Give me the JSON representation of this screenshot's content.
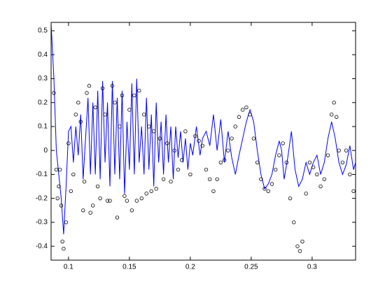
{
  "chart_data": {
    "type": "line",
    "xlim": [
      0.0857,
      0.3357
    ],
    "ylim": [
      -0.458,
      0.535
    ],
    "xticks": [
      0.1,
      0.15,
      0.2,
      0.25,
      0.3
    ],
    "yticks": [
      -0.4,
      -0.3,
      -0.2,
      -0.1,
      0,
      0.1,
      0.2,
      0.3,
      0.4,
      0.5
    ],
    "grid": false,
    "series": [
      {
        "type": "line",
        "color": "#0000ff",
        "x": [
          0.0857,
          0.088,
          0.09,
          0.092,
          0.094,
          0.096,
          0.098,
          0.1,
          0.102,
          0.104,
          0.106,
          0.108,
          0.11,
          0.112,
          0.114,
          0.116,
          0.118,
          0.12,
          0.122,
          0.124,
          0.126,
          0.128,
          0.13,
          0.132,
          0.134,
          0.136,
          0.138,
          0.14,
          0.142,
          0.144,
          0.146,
          0.148,
          0.15,
          0.152,
          0.154,
          0.156,
          0.158,
          0.16,
          0.162,
          0.164,
          0.166,
          0.168,
          0.17,
          0.172,
          0.174,
          0.176,
          0.178,
          0.18,
          0.182,
          0.184,
          0.186,
          0.188,
          0.19,
          0.192,
          0.194,
          0.196,
          0.198,
          0.2,
          0.202,
          0.205,
          0.208,
          0.21,
          0.213,
          0.216,
          0.219,
          0.222,
          0.225,
          0.228,
          0.231,
          0.234,
          0.237,
          0.24,
          0.243,
          0.246,
          0.249,
          0.252,
          0.255,
          0.258,
          0.261,
          0.264,
          0.267,
          0.27,
          0.273,
          0.275,
          0.277,
          0.28,
          0.283,
          0.286,
          0.289,
          0.292,
          0.295,
          0.298,
          0.301,
          0.304,
          0.307,
          0.31,
          0.313,
          0.316,
          0.319,
          0.322,
          0.325,
          0.328,
          0.331,
          0.334,
          0.3357
        ],
        "values": [
          0.53,
          0.3,
          0.0,
          -0.1,
          -0.2,
          -0.35,
          -0.15,
          0.08,
          0.1,
          -0.05,
          0.1,
          -0.02,
          0.15,
          -0.12,
          0.05,
          0.22,
          -0.1,
          0.2,
          -0.1,
          0.25,
          -0.12,
          0.29,
          -0.05,
          0.2,
          -0.15,
          0.29,
          -0.1,
          0.22,
          -0.12,
          0.25,
          -0.18,
          0.12,
          -0.08,
          0.28,
          -0.1,
          0.3,
          -0.05,
          0.1,
          -0.1,
          0.22,
          -0.08,
          0.15,
          -0.15,
          0.2,
          -0.05,
          0.12,
          -0.1,
          0.15,
          -0.05,
          0.1,
          -0.12,
          0.1,
          -0.03,
          0.08,
          -0.05,
          0.05,
          -0.08,
          0.03,
          -0.02,
          0.1,
          -0.02,
          0.05,
          0.08,
          0.02,
          0.15,
          0.0,
          0.13,
          -0.05,
          0.08,
          -0.03,
          -0.1,
          -0.02,
          0.05,
          0.12,
          0.17,
          0.12,
          0.0,
          -0.1,
          -0.16,
          -0.14,
          -0.1,
          -0.02,
          0.04,
          0.0,
          -0.12,
          -0.03,
          0.08,
          -0.08,
          -0.15,
          -0.12,
          -0.05,
          -0.1,
          -0.05,
          -0.02,
          -0.1,
          -0.05,
          0.05,
          0.12,
          0.05,
          -0.05,
          -0.1,
          -0.06,
          0.02,
          -0.08,
          -0.05
        ]
      },
      {
        "type": "scatter",
        "color": "#000000",
        "x": [
          0.088,
          0.09,
          0.091,
          0.092,
          0.093,
          0.094,
          0.095,
          0.096,
          0.098,
          0.1,
          0.102,
          0.104,
          0.106,
          0.108,
          0.11,
          0.112,
          0.113,
          0.115,
          0.117,
          0.118,
          0.12,
          0.122,
          0.124,
          0.126,
          0.128,
          0.13,
          0.132,
          0.134,
          0.136,
          0.138,
          0.14,
          0.142,
          0.144,
          0.146,
          0.148,
          0.15,
          0.152,
          0.154,
          0.156,
          0.158,
          0.16,
          0.162,
          0.164,
          0.166,
          0.168,
          0.17,
          0.172,
          0.175,
          0.178,
          0.181,
          0.184,
          0.187,
          0.19,
          0.193,
          0.196,
          0.2,
          0.204,
          0.207,
          0.21,
          0.213,
          0.216,
          0.219,
          0.222,
          0.225,
          0.228,
          0.231,
          0.234,
          0.237,
          0.24,
          0.243,
          0.246,
          0.249,
          0.252,
          0.255,
          0.258,
          0.261,
          0.264,
          0.267,
          0.27,
          0.273,
          0.276,
          0.279,
          0.282,
          0.285,
          0.288,
          0.29,
          0.292,
          0.295,
          0.298,
          0.301,
          0.304,
          0.307,
          0.31,
          0.313,
          0.316,
          0.318,
          0.32,
          0.322,
          0.325,
          0.328,
          0.331,
          0.334
        ],
        "values": [
          0.24,
          -0.08,
          -0.2,
          -0.15,
          -0.08,
          -0.23,
          -0.38,
          -0.41,
          -0.3,
          0.03,
          -0.17,
          -0.1,
          0.15,
          0.2,
          0.12,
          -0.25,
          -0.13,
          0.24,
          0.27,
          -0.26,
          -0.23,
          0.18,
          -0.15,
          -0.2,
          0.26,
          0.15,
          -0.21,
          -0.21,
          0.27,
          0.2,
          -0.28,
          0.1,
          0.23,
          -0.19,
          -0.21,
          0.17,
          -0.25,
          0.23,
          -0.21,
          0.25,
          -0.2,
          0.15,
          -0.18,
          0.1,
          -0.17,
          0.08,
          -0.16,
          0.05,
          -0.12,
          0.03,
          -0.13,
          0.0,
          -0.08,
          -0.04,
          0.08,
          -0.1,
          0.06,
          0.04,
          0.02,
          -0.08,
          -0.12,
          -0.17,
          -0.12,
          -0.05,
          -0.04,
          0.0,
          0.05,
          0.1,
          0.14,
          0.17,
          0.18,
          0.15,
          0.05,
          -0.05,
          -0.12,
          -0.16,
          -0.17,
          -0.14,
          -0.08,
          -0.02,
          0.03,
          -0.05,
          -0.2,
          -0.3,
          -0.4,
          -0.42,
          -0.38,
          -0.18,
          -0.05,
          -0.07,
          -0.1,
          -0.15,
          -0.12,
          -0.02,
          0.15,
          0.2,
          0.14,
          0.0,
          -0.05,
          0.0,
          -0.1,
          -0.17
        ]
      }
    ]
  }
}
